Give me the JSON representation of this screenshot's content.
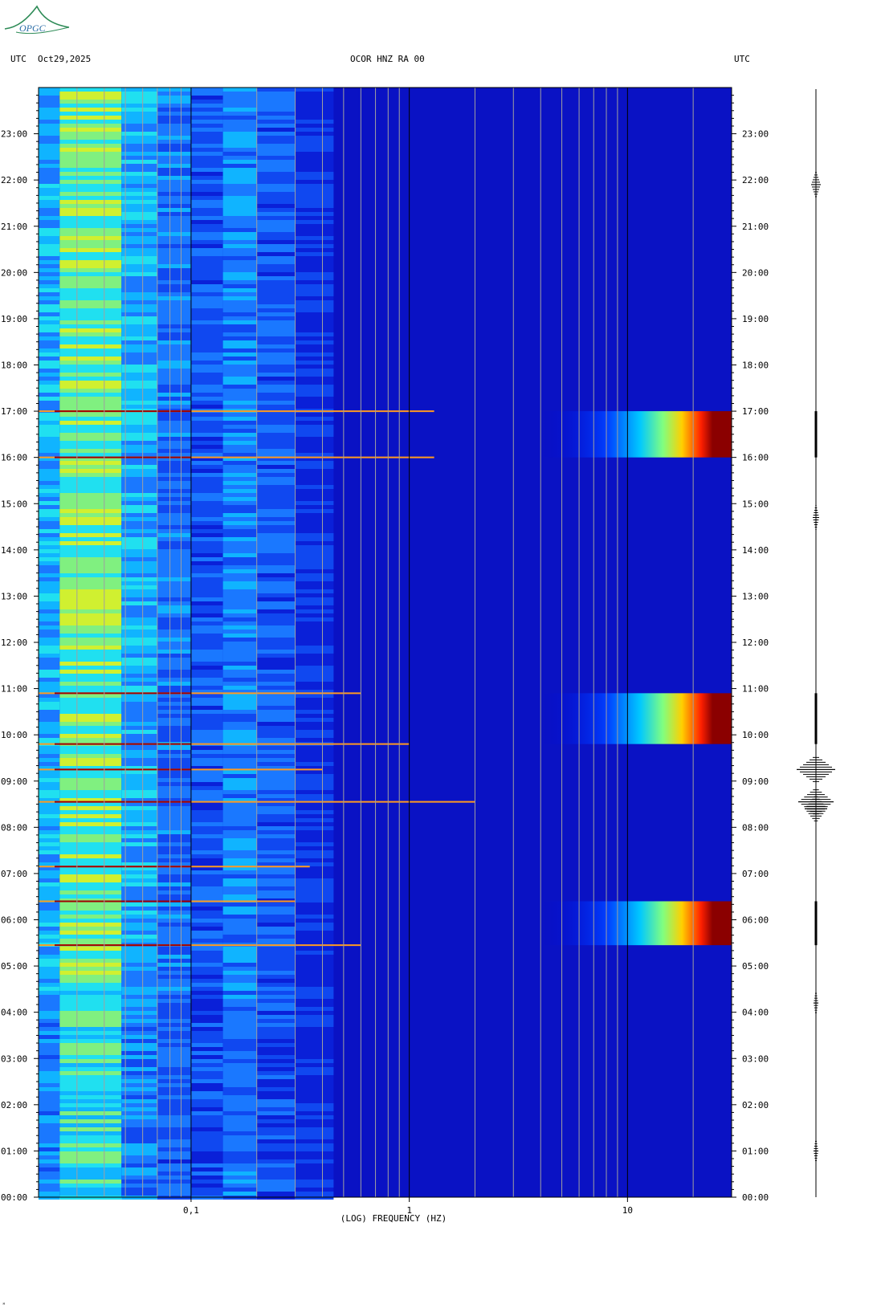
{
  "logo_text": "OPGC",
  "header": {
    "left_tz": "UTC",
    "date": "Oct29,2025",
    "station": "OCOR HNZ RA 00",
    "right_tz": "UTC"
  },
  "footer_mark": "ᴹ",
  "chart_data": {
    "type": "heatmap",
    "title": "OCOR HNZ RA 00",
    "xlabel": "(LOG) FREQUENCY (HZ)",
    "ylabel": "UTC",
    "x_scale": "log",
    "xlim": [
      0.02,
      30
    ],
    "ylim_hours": [
      0,
      24
    ],
    "x_ticks": [
      {
        "value": 0.1,
        "label": "0,1"
      },
      {
        "value": 1,
        "label": "1"
      },
      {
        "value": 10,
        "label": "10"
      }
    ],
    "y_ticks": [
      "00:00",
      "01:00",
      "02:00",
      "03:00",
      "04:00",
      "05:00",
      "06:00",
      "07:00",
      "08:00",
      "09:00",
      "10:00",
      "11:00",
      "12:00",
      "13:00",
      "14:00",
      "15:00",
      "16:00",
      "17:00",
      "18:00",
      "19:00",
      "20:00",
      "21:00",
      "22:00",
      "23:00"
    ],
    "broadband_events": [
      {
        "start_h": 5.45,
        "end_h": 6.4
      },
      {
        "start_h": 9.8,
        "end_h": 10.9
      },
      {
        "start_h": 16.0,
        "end_h": 17.0
      }
    ],
    "low_freq_lines": [
      {
        "hour": 5.45,
        "reach_hz": 0.6
      },
      {
        "hour": 6.4,
        "reach_hz": 0.3
      },
      {
        "hour": 7.15,
        "reach_hz": 0.35
      },
      {
        "hour": 8.55,
        "reach_hz": 2.0
      },
      {
        "hour": 9.25,
        "reach_hz": 0.4
      },
      {
        "hour": 9.8,
        "reach_hz": 1.0
      },
      {
        "hour": 10.9,
        "reach_hz": 0.6
      },
      {
        "hour": 16.0,
        "reach_hz": 1.3
      },
      {
        "hour": 17.0,
        "reach_hz": 1.3
      }
    ]
  }
}
